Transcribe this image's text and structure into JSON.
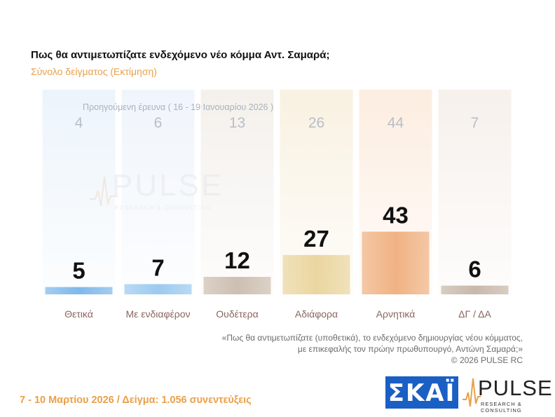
{
  "header": {
    "title": "Πως θα αντιμετωπίζατε ενδεχόμενο νέο κόμμα Αντ. Σαμαρά;",
    "subtitle": "Σύνολο δείγματος  (Εκτίμηση)"
  },
  "chart_data": {
    "type": "bar",
    "categories": [
      "Θετικά",
      "Με ενδιαφέρον",
      "Ουδέτερα",
      "Αδιάφορα",
      "Αρνητικά",
      "ΔΓ / ΔΑ"
    ],
    "series": [
      {
        "name": "",
        "values": [
          5,
          7,
          12,
          27,
          43,
          6
        ]
      },
      {
        "name": "Προηγούμενη έρευνα ( 16 - 19 Ιανουαρίου 2026 )",
        "values": [
          4,
          6,
          13,
          26,
          44,
          7
        ]
      }
    ],
    "previous_caption": "Προηγούμενη έρευνα ( 16 - 19 Ιανουαρίου 2026 )",
    "ylim": [
      0,
      50
    ],
    "grid": false,
    "colors": [
      "#7fb8ea",
      "#9ccaf0",
      "#cdbfb1",
      "#ead6a0",
      "#f0b283",
      "#c8b8aa"
    ],
    "background_colors": [
      "#eaf3fb",
      "#eef4fb",
      "#f3efea",
      "#f8f0de",
      "#fcebdc",
      "#f6efea"
    ]
  },
  "watermark": {
    "word": "PULSE",
    "sub": "RESEARCH & CONSULTING"
  },
  "note": {
    "line1": "«Πως θα αντιμετωπίζατε (υποθετικά), το ενδεχόμενο δημιουργίας νέου κόμματος,",
    "line2": "με επικεφαλής τον πρώην πρωθυπουργό, Αντώνη Σαμαρά;»",
    "line3": "©  2026  PULSE RC"
  },
  "footer": {
    "left": "7 - 10  Μαρτίου 2026  /  Δείγμα:  1.056 συνεντεύξεις",
    "skai_logo": "ΣΚΑΪ",
    "pulse_logo": "PULSE",
    "pulse_logo_sub": "RESEARCH & CONSULTING"
  }
}
